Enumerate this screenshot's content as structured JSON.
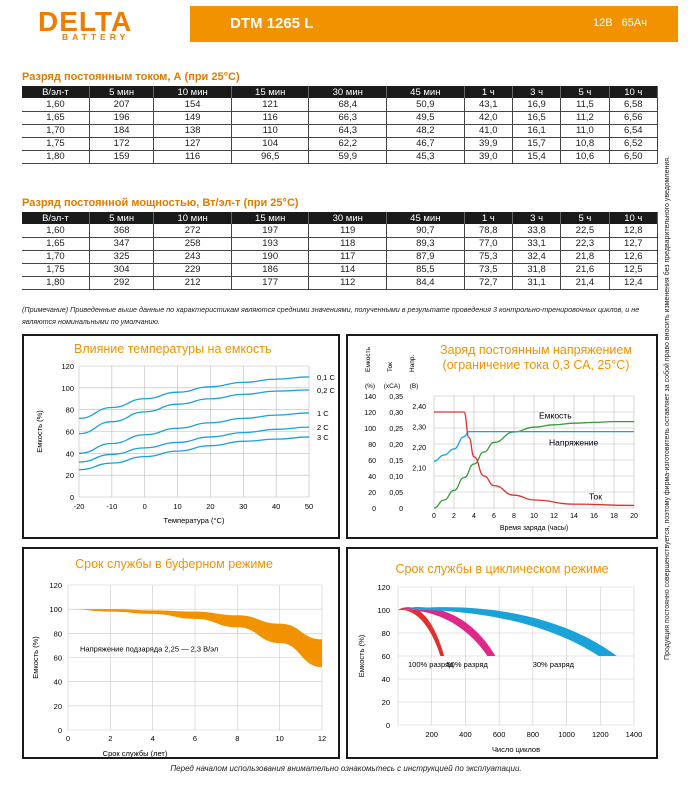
{
  "header": {
    "logo": "DELTA",
    "logo_sub": "BATTERY",
    "model": "DTM 1265 L",
    "voltage": "12В",
    "capacity": "65Ач",
    "accent": "#f39200"
  },
  "current_table": {
    "title": "Разряд постоянным током, А (при 25°С)",
    "headers": [
      "В/эл-т",
      "5 мин",
      "10 мин",
      "15 мин",
      "30 мин",
      "45 мин",
      "1 ч",
      "3 ч",
      "5 ч",
      "10 ч"
    ],
    "rows": [
      [
        "1,60",
        "207",
        "154",
        "121",
        "68,4",
        "50,9",
        "43,1",
        "16,9",
        "11,5",
        "6,58"
      ],
      [
        "1,65",
        "196",
        "149",
        "116",
        "66,3",
        "49,5",
        "42,0",
        "16,5",
        "11,2",
        "6,56"
      ],
      [
        "1,70",
        "184",
        "138",
        "110",
        "64,3",
        "48,2",
        "41,0",
        "16,1",
        "11,0",
        "6,54"
      ],
      [
        "1,75",
        "172",
        "127",
        "104",
        "62,2",
        "46,7",
        "39,9",
        "15,7",
        "10,8",
        "6,52"
      ],
      [
        "1,80",
        "159",
        "116",
        "96,5",
        "59,9",
        "45,3",
        "39,0",
        "15,4",
        "10,6",
        "6,50"
      ]
    ]
  },
  "power_table": {
    "title": "Разряд постоянной мощностью, Вт/эл-т (при 25°С)",
    "headers": [
      "В/эл-т",
      "5 мин",
      "10 мин",
      "15 мин",
      "30 мин",
      "45 мин",
      "1 ч",
      "3 ч",
      "5 ч",
      "10 ч"
    ],
    "rows": [
      [
        "1,60",
        "368",
        "272",
        "197",
        "119",
        "90,7",
        "78,8",
        "33,8",
        "22,5",
        "12,8"
      ],
      [
        "1,65",
        "347",
        "258",
        "193",
        "118",
        "89,3",
        "77,0",
        "33,1",
        "22,3",
        "12,7"
      ],
      [
        "1,70",
        "325",
        "243",
        "190",
        "117",
        "87,9",
        "75,3",
        "32,4",
        "21,8",
        "12,6"
      ],
      [
        "1,75",
        "304",
        "229",
        "186",
        "114",
        "85,5",
        "73,5",
        "31,8",
        "21,6",
        "12,5"
      ],
      [
        "1,80",
        "292",
        "212",
        "177",
        "112",
        "84,4",
        "72,7",
        "31,1",
        "21,4",
        "12,4"
      ]
    ]
  },
  "note": "(Примечание) Приведенные выше данные по характеристикам являются средними значениями, полученными в результате проведения 3 контрольно-тренировочных циклов, и не являются номинальными по умолчанию.",
  "side_note": "Продукция постоянно совершенствуется, поэтому фирма-изготовитель оставляет за собой право вносить изменения без предварительного уведомления.",
  "footer": "Перед началом использования внимательно ознакомьтесь с инструкцией по эксплуатации.",
  "chart_data": [
    {
      "type": "line",
      "title": "Влияние температуры на емкость",
      "xlabel": "Температура (°С)",
      "ylabel": "Емкость (%)",
      "xlim": [
        -20,
        50
      ],
      "ylim": [
        0,
        120
      ],
      "x_ticks": [
        "-20",
        "-10",
        "0",
        "10",
        "20",
        "30",
        "40",
        "50"
      ],
      "y_ticks": [
        "0",
        "20",
        "40",
        "60",
        "80",
        "100",
        "120"
      ],
      "x": [
        -20,
        -10,
        0,
        10,
        20,
        30,
        40,
        50
      ],
      "series": [
        {
          "name": "0,1 С",
          "values": [
            72,
            82,
            90,
            96,
            101,
            105,
            108,
            110
          ]
        },
        {
          "name": "0,2 С",
          "values": [
            58,
            69,
            78,
            85,
            90,
            94,
            97,
            98
          ]
        },
        {
          "name": "1 С",
          "values": [
            40,
            49,
            57,
            63,
            68,
            72,
            75,
            77
          ]
        },
        {
          "name": "2 С",
          "values": [
            32,
            39,
            45,
            50,
            55,
            59,
            62,
            64
          ]
        },
        {
          "name": "3 С",
          "values": [
            25,
            31,
            37,
            42,
            47,
            51,
            53,
            55
          ]
        }
      ],
      "color": "#1aa3d8"
    },
    {
      "type": "line",
      "title": "Заряд постоянным напряжением",
      "subtitle": "(ограничение тока 0,3 СА, 25°С)",
      "xlabel": "Время заряда (часы)",
      "left_axes": [
        {
          "label": "Емкость",
          "unit": "(%)",
          "ticks": [
            "0",
            "20",
            "40",
            "60",
            "80",
            "100",
            "120",
            "140"
          ]
        },
        {
          "label": "Ток",
          "unit": "(хСА)",
          "ticks": [
            "0",
            "0,05",
            "0,10",
            "0,15",
            "0,20",
            "0,25",
            "0,30",
            "0,35"
          ]
        },
        {
          "label": "Напр.",
          "unit": "(В)",
          "ticks": [
            "",
            "",
            "2,10",
            "2,20",
            "2,30",
            "2,40"
          ]
        }
      ],
      "x_ticks": [
        "0",
        "2",
        "4",
        "6",
        "8",
        "10",
        "12",
        "14",
        "16",
        "18",
        "20"
      ],
      "xlim": [
        0,
        20
      ],
      "series": [
        {
          "name": "Емкость",
          "color": "#3a9a3a",
          "x": [
            0,
            1,
            2,
            3,
            4,
            5,
            6,
            8,
            10,
            12,
            14,
            16,
            18,
            20
          ],
          "values": [
            0,
            10,
            22,
            38,
            55,
            70,
            82,
            95,
            101,
            104,
            106,
            107,
            108,
            108
          ]
        },
        {
          "name": "Напряжение",
          "color": "#1aa3d8",
          "x": [
            0,
            1,
            2,
            3,
            3.5,
            4,
            6,
            10,
            20
          ],
          "values": [
            2.13,
            2.16,
            2.19,
            2.25,
            2.275,
            2.275,
            2.275,
            2.275,
            2.275
          ]
        },
        {
          "name": "Ток",
          "color": "#e03030",
          "x": [
            0,
            1,
            2,
            3,
            3.5,
            4,
            5,
            6,
            8,
            10,
            14,
            20
          ],
          "values": [
            0.3,
            0.3,
            0.3,
            0.3,
            0.22,
            0.16,
            0.1,
            0.07,
            0.04,
            0.025,
            0.012,
            0.008
          ]
        }
      ]
    },
    {
      "type": "area",
      "title": "Срок службы в буферном режиме",
      "xlabel": "Срок службы (лет)",
      "ylabel": "Емкость (%)",
      "annotation": "Напряжение подзаряда 2,25 — 2,3 В/эл",
      "xlim": [
        0,
        12
      ],
      "ylim": [
        0,
        120
      ],
      "x_ticks": [
        "0",
        "2",
        "4",
        "6",
        "8",
        "10",
        "12"
      ],
      "y_ticks": [
        "0",
        "20",
        "40",
        "60",
        "80",
        "100",
        "120"
      ],
      "x": [
        0,
        2,
        4,
        6,
        8,
        10,
        12
      ],
      "upper": [
        100,
        100,
        99,
        98,
        95,
        88,
        75
      ],
      "lower": [
        100,
        98,
        96,
        92,
        85,
        72,
        52
      ],
      "color": "#f39200"
    },
    {
      "type": "area",
      "title": "Срок службы в циклическом режиме",
      "xlabel": "Число циклов",
      "ylabel": "Емкость (%)",
      "xlim": [
        0,
        1400
      ],
      "ylim": [
        0,
        120
      ],
      "x_ticks": [
        "0",
        "200",
        "400",
        "600",
        "800",
        "1000",
        "1200",
        "1400"
      ],
      "y_ticks": [
        "0",
        "20",
        "40",
        "60",
        "80",
        "100",
        "120"
      ],
      "series": [
        {
          "name": "100% разряд",
          "end_cycles": 270,
          "color": "#e03030"
        },
        {
          "name": "50% разряд",
          "end_cycles": 570,
          "color": "#e0278a"
        },
        {
          "name": "30% разряд",
          "end_cycles": 1280,
          "color": "#1aa3d8"
        }
      ]
    }
  ]
}
